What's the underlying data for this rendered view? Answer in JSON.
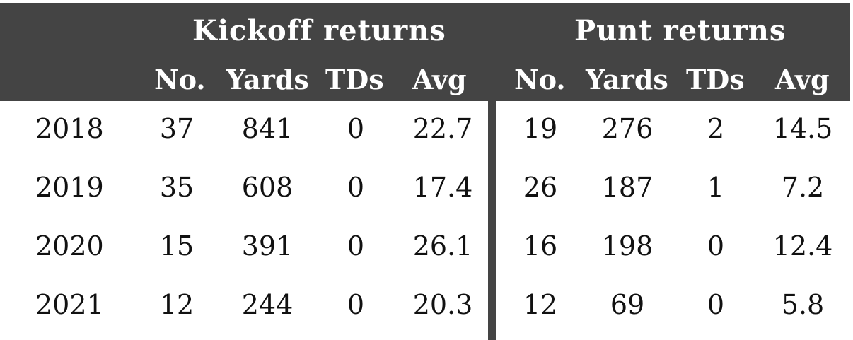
{
  "table": {
    "groups": {
      "kickoff": "Kickoff returns",
      "punt": "Punt returns"
    },
    "columns": {
      "kickoff": [
        "No.",
        "Yards",
        "TDs",
        "Avg"
      ],
      "punt": [
        "No.",
        "Yards",
        "TDs",
        "Avg"
      ]
    },
    "rows": [
      {
        "year": "2018",
        "kickoff": [
          "37",
          "841",
          "0",
          "22.7"
        ],
        "punt": [
          "19",
          "276",
          "2",
          "14.5"
        ]
      },
      {
        "year": "2019",
        "kickoff": [
          "35",
          "608",
          "0",
          "17.4"
        ],
        "punt": [
          "26",
          "187",
          "1",
          "7.2"
        ]
      },
      {
        "year": "2020",
        "kickoff": [
          "15",
          "391",
          "0",
          "26.1"
        ],
        "punt": [
          "16",
          "198",
          "0",
          "12.4"
        ]
      },
      {
        "year": "2021",
        "kickoff": [
          "12",
          "244",
          "0",
          "20.3"
        ],
        "punt": [
          "12",
          "69",
          "0",
          "5.8"
        ]
      }
    ]
  },
  "colors": {
    "header_bg": "#444444",
    "header_text": "#ffffff",
    "body_text": "#111111"
  }
}
